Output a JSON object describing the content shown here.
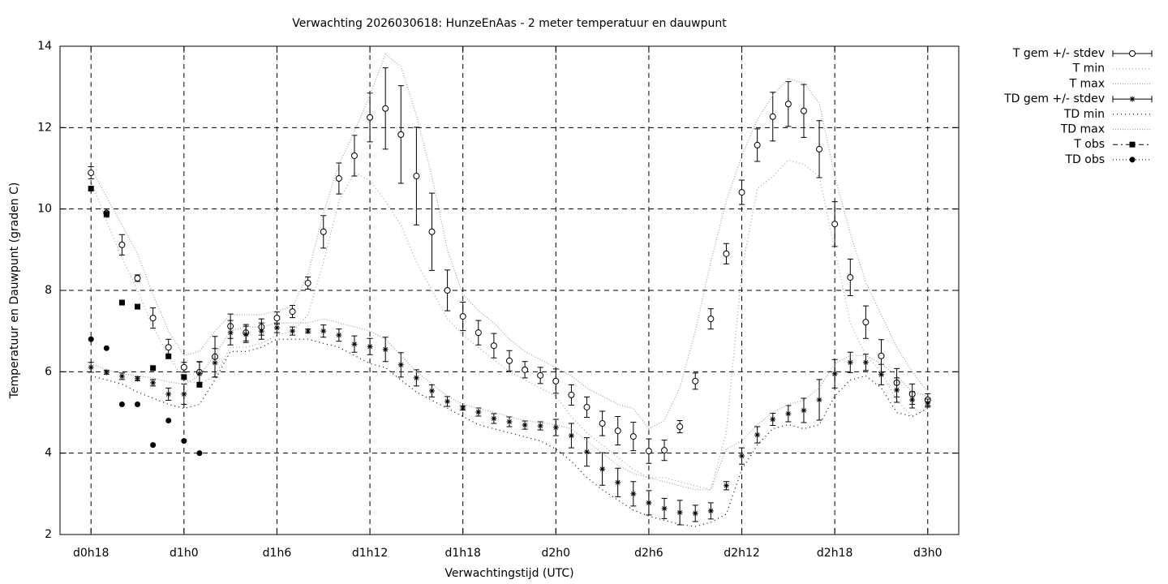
{
  "chart_data": {
    "type": "line",
    "title": "Verwachting 2026030618: HunzeEnAas - 2 meter temperatuur en dauwpunt",
    "x_label": "Verwachtingstijd (UTC)",
    "y_label": "Temperatuur en Dauwpunt (graden C)",
    "x": [
      18,
      19,
      20,
      21,
      22,
      23,
      24,
      25,
      26,
      27,
      28,
      29,
      30,
      31,
      32,
      33,
      34,
      35,
      36,
      37,
      38,
      39,
      40,
      41,
      42,
      43,
      44,
      45,
      46,
      47,
      48,
      49,
      50,
      51,
      52,
      53,
      54,
      55,
      56,
      57,
      58,
      59,
      60,
      61,
      62,
      63,
      64,
      65,
      66,
      67,
      68,
      69,
      70,
      71,
      72
    ],
    "xlim": [
      16,
      74
    ],
    "xticks": [
      {
        "value": 18,
        "label": "d0h18"
      },
      {
        "value": 24,
        "label": "d1h0"
      },
      {
        "value": 30,
        "label": "d1h6"
      },
      {
        "value": 36,
        "label": "d1h12"
      },
      {
        "value": 42,
        "label": "d1h18"
      },
      {
        "value": 48,
        "label": "d2h0"
      },
      {
        "value": 54,
        "label": "d2h6"
      },
      {
        "value": 60,
        "label": "d2h12"
      },
      {
        "value": 66,
        "label": "d2h18"
      },
      {
        "value": 72,
        "label": "d3h0"
      }
    ],
    "ylim": [
      2,
      14
    ],
    "yticks": [
      2,
      4,
      6,
      8,
      10,
      12,
      14
    ],
    "grid": true,
    "legend": "outside-right",
    "series": [
      {
        "name": "T gem +/- stdev",
        "color": "#000000",
        "style": "errorbars",
        "marker": "circle",
        "values": [
          10.89,
          9.9,
          9.12,
          8.3,
          7.32,
          6.6,
          6.11,
          5.99,
          6.37,
          7.12,
          6.96,
          7.1,
          7.32,
          7.48,
          8.18,
          9.44,
          10.75,
          11.31,
          12.25,
          12.47,
          11.83,
          10.81,
          9.44,
          8.0,
          7.36,
          6.96,
          6.64,
          6.27,
          6.05,
          5.91,
          5.77,
          5.43,
          5.13,
          4.73,
          4.55,
          4.41,
          4.05,
          4.07,
          4.65,
          5.77,
          7.3,
          8.9,
          10.41,
          11.57,
          12.27,
          12.58,
          12.41,
          11.47,
          9.63,
          8.32,
          7.22,
          6.39,
          5.73,
          5.45,
          5.31
        ],
        "errors": [
          0.15,
          0.1,
          0.25,
          0.08,
          0.25,
          0.2,
          0.12,
          0.25,
          0.5,
          0.3,
          0.2,
          0.2,
          0.15,
          0.15,
          0.15,
          0.4,
          0.38,
          0.5,
          0.6,
          1.0,
          1.2,
          1.2,
          0.95,
          0.5,
          0.35,
          0.3,
          0.3,
          0.25,
          0.2,
          0.2,
          0.3,
          0.25,
          0.25,
          0.3,
          0.35,
          0.35,
          0.3,
          0.25,
          0.15,
          0.2,
          0.25,
          0.25,
          0.3,
          0.4,
          0.6,
          0.55,
          0.65,
          0.7,
          0.55,
          0.45,
          0.4,
          0.4,
          0.35,
          0.25,
          0.15
        ]
      },
      {
        "name": "T min",
        "color": "#a0a0a0",
        "style": "line",
        "dash": "1 3",
        "values": [
          10.7,
          9.7,
          8.8,
          8.0,
          7.1,
          6.4,
          5.8,
          5.7,
          5.9,
          6.6,
          6.6,
          6.7,
          6.9,
          7.0,
          7.4,
          8.7,
          10.2,
          10.9,
          10.7,
          10.2,
          9.6,
          8.7,
          8.0,
          7.3,
          6.9,
          6.6,
          6.3,
          6.0,
          5.8,
          5.6,
          5.4,
          4.9,
          4.5,
          4.2,
          3.9,
          3.6,
          3.4,
          3.4,
          3.3,
          3.2,
          3.1,
          4.5,
          8.5,
          10.5,
          10.8,
          11.2,
          11.1,
          10.8,
          9.0,
          7.2,
          6.4,
          6.0,
          5.3,
          4.9,
          5.1
        ]
      },
      {
        "name": "T max",
        "color": "#a0a0a0",
        "style": "line",
        "dash": "1 2",
        "values": [
          11.0,
          10.3,
          9.6,
          8.9,
          7.9,
          7.0,
          6.4,
          6.5,
          7.0,
          7.4,
          7.4,
          7.4,
          7.5,
          7.6,
          8.4,
          9.9,
          11.1,
          11.9,
          12.8,
          13.8,
          13.5,
          12.3,
          10.8,
          9.0,
          7.9,
          7.5,
          7.2,
          6.8,
          6.5,
          6.3,
          6.1,
          5.9,
          5.6,
          5.4,
          5.2,
          5.1,
          4.6,
          4.8,
          5.6,
          7.0,
          8.7,
          10.2,
          11.3,
          12.2,
          12.8,
          13.2,
          13.1,
          12.6,
          10.8,
          9.4,
          8.2,
          7.4,
          6.6,
          6.0,
          5.5
        ]
      },
      {
        "name": "TD gem +/- stdev",
        "color": "#000000",
        "style": "errorbars",
        "marker": "star",
        "values": [
          6.11,
          5.99,
          5.89,
          5.83,
          5.73,
          5.45,
          5.45,
          5.95,
          6.22,
          6.96,
          6.92,
          7.0,
          7.08,
          7.0,
          7.0,
          7.0,
          6.9,
          6.68,
          6.62,
          6.55,
          6.17,
          5.85,
          5.53,
          5.27,
          5.11,
          5.01,
          4.85,
          4.77,
          4.69,
          4.67,
          4.63,
          4.43,
          4.03,
          3.61,
          3.28,
          3.0,
          2.78,
          2.64,
          2.54,
          2.52,
          2.58,
          3.2,
          3.93,
          4.45,
          4.83,
          4.97,
          5.05,
          5.31,
          5.95,
          6.23,
          6.23,
          5.93,
          5.55,
          5.31,
          5.23
        ],
        "errors": [
          0.12,
          0.05,
          0.08,
          0.05,
          0.08,
          0.15,
          0.25,
          0.3,
          0.35,
          0.3,
          0.2,
          0.2,
          0.12,
          0.1,
          0.05,
          0.15,
          0.15,
          0.2,
          0.2,
          0.3,
          0.3,
          0.2,
          0.15,
          0.12,
          0.05,
          0.1,
          0.12,
          0.12,
          0.1,
          0.1,
          0.2,
          0.3,
          0.35,
          0.4,
          0.35,
          0.3,
          0.3,
          0.25,
          0.3,
          0.2,
          0.2,
          0.1,
          0.2,
          0.2,
          0.15,
          0.2,
          0.3,
          0.5,
          0.35,
          0.25,
          0.2,
          0.25,
          0.3,
          0.2,
          0.1
        ]
      },
      {
        "name": "TD min",
        "color": "#000000",
        "style": "line",
        "dash": "1 4",
        "values": [
          5.9,
          5.8,
          5.7,
          5.5,
          5.35,
          5.2,
          5.1,
          5.2,
          5.8,
          6.5,
          6.5,
          6.6,
          6.8,
          6.8,
          6.8,
          6.7,
          6.6,
          6.4,
          6.2,
          6.1,
          5.8,
          5.5,
          5.3,
          5.1,
          4.9,
          4.7,
          4.6,
          4.5,
          4.4,
          4.3,
          4.1,
          3.8,
          3.4,
          3.1,
          2.85,
          2.6,
          2.45,
          2.35,
          2.25,
          2.2,
          2.3,
          2.5,
          3.6,
          4.2,
          4.6,
          4.7,
          4.6,
          4.7,
          5.4,
          5.8,
          5.9,
          5.6,
          5.0,
          4.9,
          5.1
        ]
      },
      {
        "name": "TD max",
        "color": "#a0a0a0",
        "style": "line",
        "dash": "1 2",
        "values": [
          6.2,
          6.05,
          5.95,
          5.9,
          5.85,
          5.75,
          5.7,
          5.9,
          6.4,
          7.0,
          7.1,
          7.1,
          7.2,
          7.2,
          7.2,
          7.3,
          7.2,
          7.1,
          7.0,
          6.8,
          6.4,
          6.0,
          5.7,
          5.4,
          5.2,
          5.1,
          5.0,
          4.9,
          4.8,
          4.75,
          4.7,
          4.6,
          4.3,
          4.0,
          3.7,
          3.5,
          3.4,
          3.3,
          3.2,
          3.1,
          3.1,
          4.1,
          4.3,
          4.7,
          5.0,
          5.2,
          5.3,
          5.6,
          6.2,
          6.4,
          6.4,
          6.2,
          5.9,
          5.5,
          5.4
        ]
      },
      {
        "name": "T obs",
        "color": "#000000",
        "style": "points",
        "marker": "square",
        "values": [
          10.5,
          9.88,
          7.7,
          7.6,
          6.09,
          6.38,
          5.87,
          5.68,
          null,
          null,
          null,
          null,
          null,
          null,
          null,
          null,
          null,
          null,
          null,
          null,
          null,
          null,
          null,
          null,
          null,
          null,
          null,
          null,
          null,
          null,
          null,
          null,
          null,
          null,
          null,
          null,
          null,
          null,
          null,
          null,
          null,
          null,
          null,
          null,
          null,
          null,
          null,
          null,
          null,
          null,
          null,
          null,
          null,
          null,
          null
        ]
      },
      {
        "name": "TD obs",
        "color": "#000000",
        "style": "points",
        "marker": "dot",
        "values": [
          6.8,
          6.58,
          5.2,
          5.2,
          4.2,
          4.8,
          4.3,
          4.0,
          null,
          null,
          null,
          null,
          null,
          null,
          null,
          null,
          null,
          null,
          null,
          null,
          null,
          null,
          null,
          null,
          null,
          null,
          null,
          null,
          null,
          null,
          null,
          null,
          null,
          null,
          null,
          null,
          null,
          null,
          null,
          null,
          null,
          null,
          null,
          null,
          null,
          null,
          null,
          null,
          null,
          null,
          null,
          null,
          null,
          null,
          null
        ]
      }
    ]
  }
}
